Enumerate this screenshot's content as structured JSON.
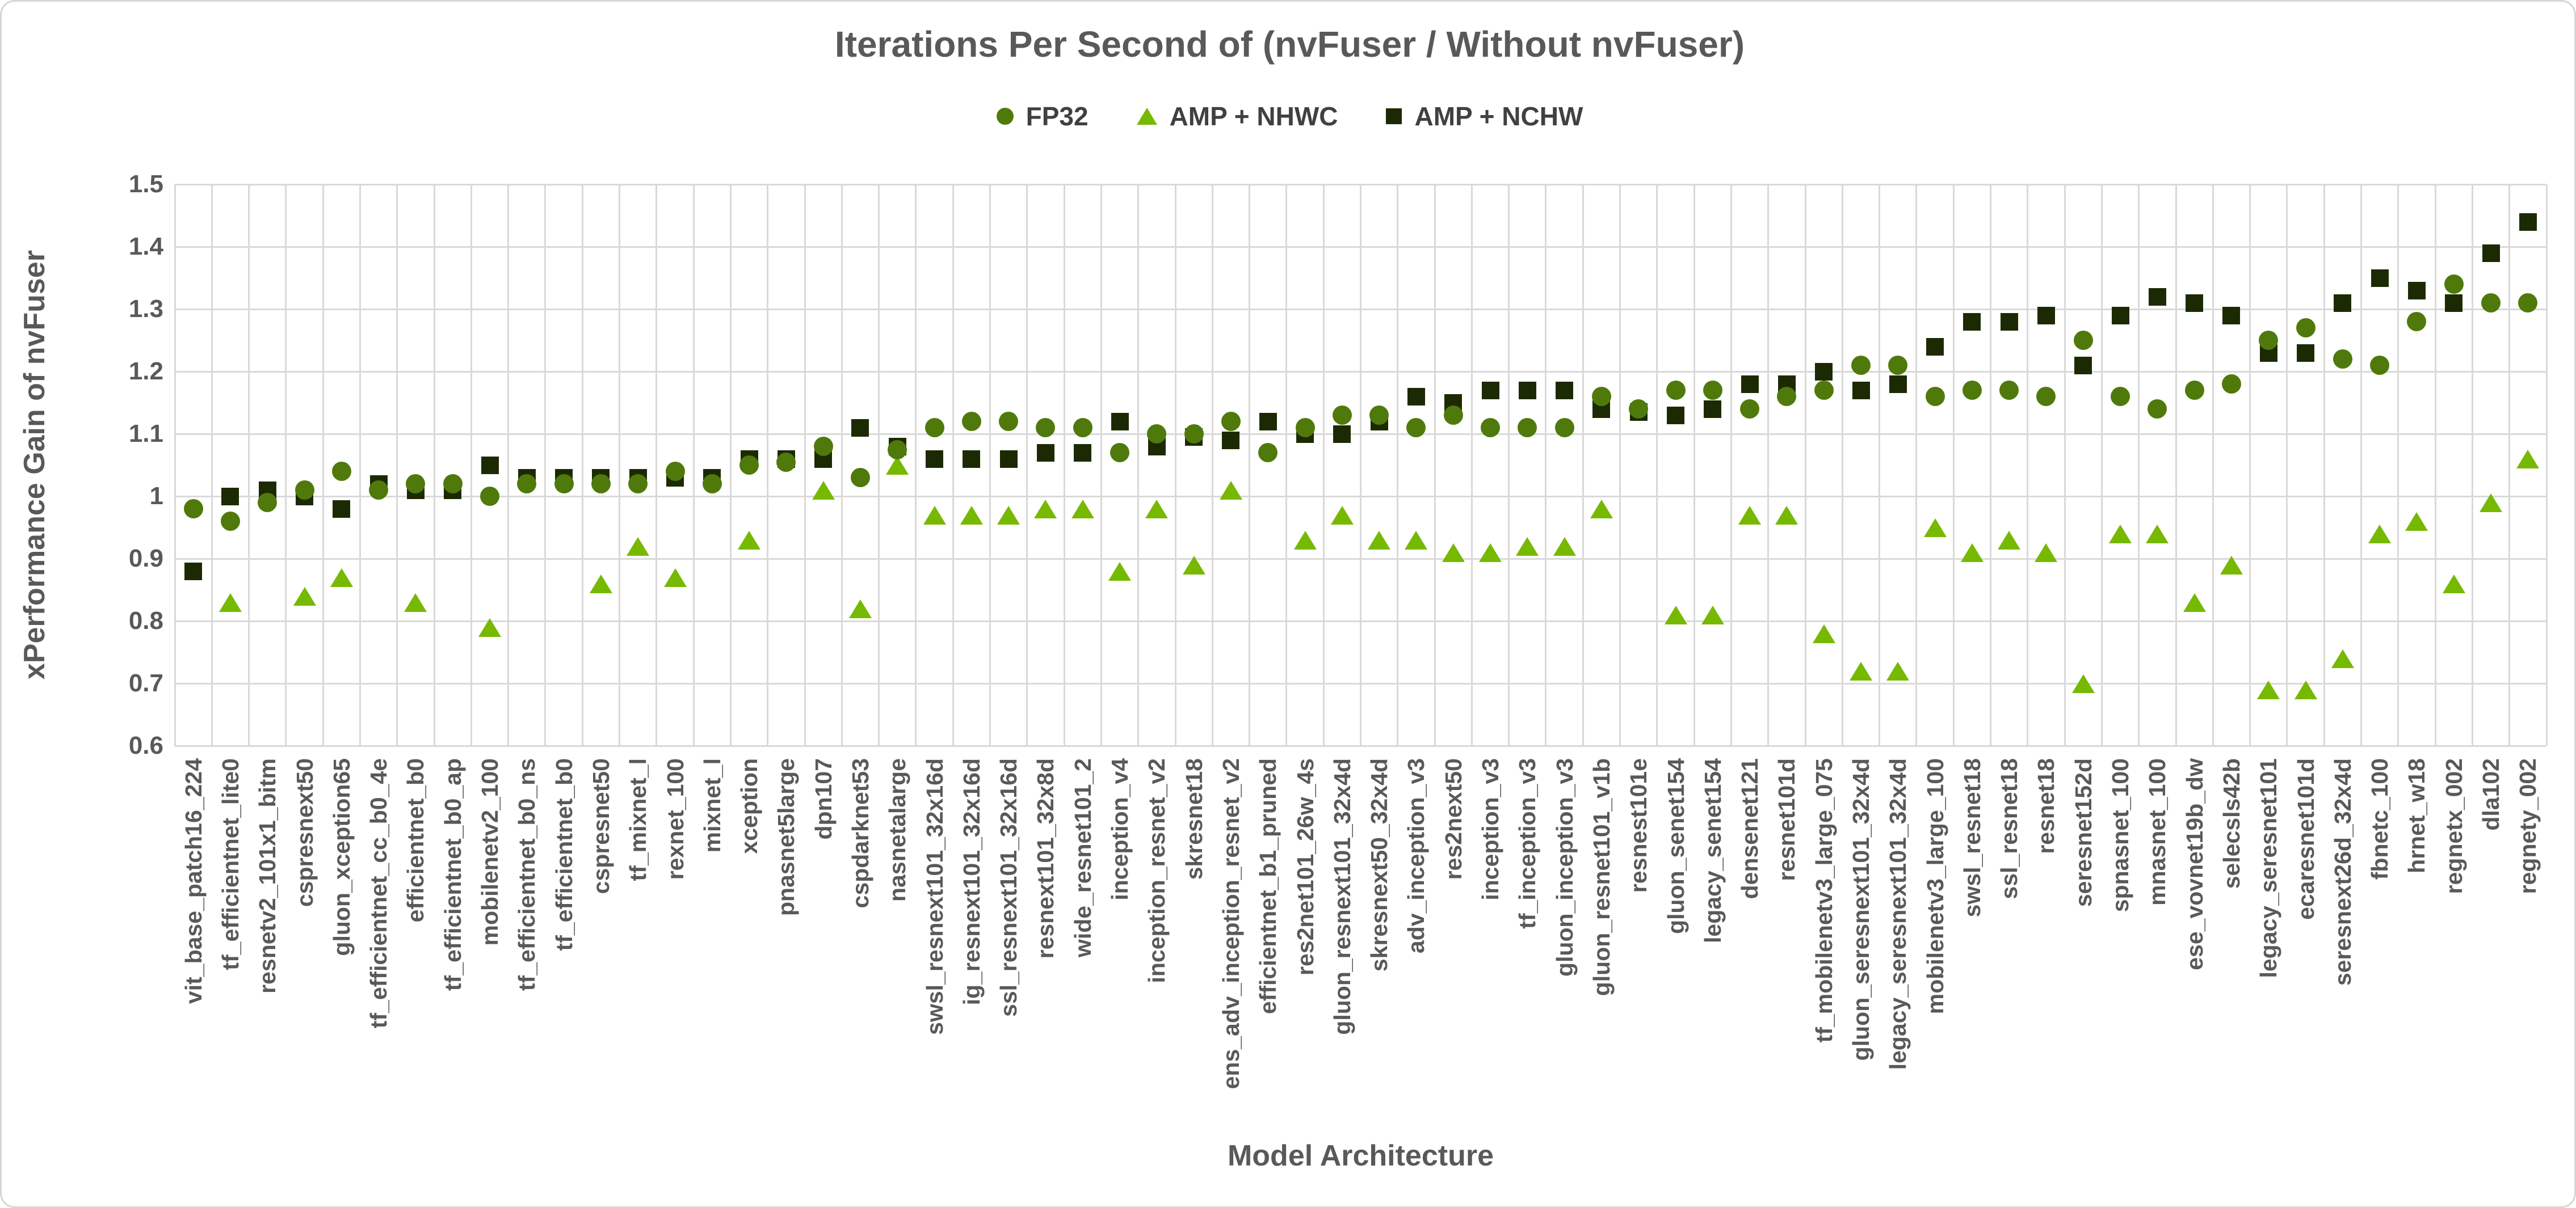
{
  "title": "Iterations Per Second of (nvFuser / Without nvFuser)",
  "colors": {
    "fp32": "#4f7a0b",
    "amp_nhwc": "#76b900",
    "amp_nchw": "#1b2a02",
    "text": "#595959",
    "grid": "#d9d9d9"
  },
  "legend": [
    {
      "label": "FP32",
      "shape": "circle"
    },
    {
      "label": "AMP + NHWC",
      "shape": "triangle"
    },
    {
      "label": "AMP + NCHW",
      "shape": "square"
    }
  ],
  "y_axis": {
    "title": "xPerformance Gain of nvFuser",
    "tick_labels": [
      "1.5",
      "1.4",
      "1.3",
      "1.2",
      "1.1",
      "1",
      "0.9",
      "0.8",
      "0.7",
      "0.6"
    ],
    "tick_values": [
      1.5,
      1.4,
      1.3,
      1.2,
      1.1,
      1.0,
      0.9,
      0.8,
      0.7,
      0.6
    ]
  },
  "x_axis": {
    "title": "Model Architecture"
  },
  "chart_data": {
    "type": "scatter",
    "title": "Iterations Per Second of (nvFuser / Without nvFuser)",
    "xlabel": "Model Architecture",
    "ylabel": "xPerformance Gain of nvFuser",
    "ylim": [
      0.6,
      1.5
    ],
    "grid": true,
    "legend_position": "top",
    "categories": [
      "vit_base_patch16_224",
      "tf_efficientnet_lite0",
      "resnetv2_101x1_bitm",
      "cspresnext50",
      "gluon_xception65",
      "tf_efficientnet_cc_b0_4e",
      "efficientnet_b0",
      "tf_efficientnet_b0_ap",
      "mobilenetv2_100",
      "tf_efficientnet_b0_ns",
      "tf_efficientnet_b0",
      "cspresnet50",
      "tf_mixnet_l",
      "rexnet_100",
      "mixnet_l",
      "xception",
      "pnasnet5large",
      "dpn107",
      "cspdarknet53",
      "nasnetalarge",
      "swsl_resnext101_32x16d",
      "ig_resnext101_32x16d",
      "ssl_resnext101_32x16d",
      "resnext101_32x8d",
      "wide_resnet101_2",
      "inception_v4",
      "inception_resnet_v2",
      "skresnet18",
      "ens_adv_inception_resnet_v2",
      "efficientnet_b1_pruned",
      "res2net101_26w_4s",
      "gluon_resnext101_32x4d",
      "skresnext50_32x4d",
      "adv_inception_v3",
      "res2next50",
      "inception_v3",
      "tf_inception_v3",
      "gluon_inception_v3",
      "gluon_resnet101_v1b",
      "resnest101e",
      "gluon_senet154",
      "legacy_senet154",
      "densenet121",
      "resnet101d",
      "tf_mobilenetv3_large_075",
      "gluon_seresnext101_32x4d",
      "legacy_seresnext101_32x4d",
      "mobilenetv3_large_100",
      "swsl_resnet18",
      "ssl_resnet18",
      "resnet18",
      "seresnet152d",
      "spnasnet_100",
      "mnasnet_100",
      "ese_vovnet19b_dw",
      "selecsls42b",
      "legacy_seresnet101",
      "ecaresnet101d",
      "seresnext26d_32x4d",
      "fbnetc_100",
      "hrnet_w18",
      "regnetx_002",
      "dla102",
      "regnety_002"
    ],
    "series": [
      {
        "name": "FP32",
        "marker": "circle",
        "values": [
          0.98,
          0.96,
          0.99,
          1.01,
          1.04,
          1.01,
          1.02,
          1.02,
          1.0,
          1.02,
          1.02,
          1.02,
          1.02,
          1.04,
          1.02,
          1.05,
          1.055,
          1.08,
          1.03,
          1.075,
          1.11,
          1.12,
          1.12,
          1.11,
          1.11,
          1.07,
          1.1,
          1.1,
          1.12,
          1.07,
          1.11,
          1.13,
          1.13,
          1.11,
          1.13,
          1.11,
          1.11,
          1.11,
          1.16,
          1.14,
          1.17,
          1.17,
          1.14,
          1.16,
          1.17,
          1.21,
          1.21,
          1.16,
          1.17,
          1.17,
          1.16,
          1.25,
          1.16,
          1.14,
          1.17,
          1.18,
          1.25,
          1.27,
          1.22,
          1.21,
          1.28,
          1.34,
          1.31,
          1.31
        ]
      },
      {
        "name": "AMP + NHWC",
        "marker": "triangle",
        "values": [
          null,
          0.83,
          null,
          0.84,
          0.87,
          null,
          0.83,
          null,
          0.79,
          null,
          null,
          0.86,
          0.92,
          0.87,
          null,
          0.93,
          null,
          1.01,
          0.82,
          1.05,
          0.97,
          0.97,
          0.97,
          0.98,
          0.98,
          0.88,
          0.98,
          0.89,
          1.01,
          null,
          0.93,
          0.97,
          0.93,
          0.93,
          0.91,
          0.91,
          0.92,
          0.92,
          0.98,
          null,
          0.81,
          0.81,
          0.97,
          0.97,
          0.78,
          0.72,
          0.72,
          0.95,
          0.91,
          0.93,
          0.91,
          0.7,
          0.94,
          0.94,
          0.83,
          0.89,
          0.69,
          0.69,
          0.74,
          0.94,
          0.96,
          0.86,
          0.99,
          1.06
        ]
      },
      {
        "name": "AMP + NCHW",
        "marker": "square",
        "values": [
          0.88,
          1.0,
          1.01,
          1.0,
          0.98,
          1.02,
          1.01,
          1.01,
          1.05,
          1.03,
          1.03,
          1.03,
          1.03,
          1.03,
          1.03,
          1.06,
          1.06,
          1.06,
          1.11,
          1.08,
          1.06,
          1.06,
          1.06,
          1.07,
          1.07,
          1.12,
          1.08,
          1.095,
          1.09,
          1.12,
          1.1,
          1.1,
          1.12,
          1.16,
          1.15,
          1.17,
          1.17,
          1.17,
          1.14,
          1.135,
          1.13,
          1.14,
          1.18,
          1.18,
          1.2,
          1.17,
          1.18,
          1.24,
          1.28,
          1.28,
          1.29,
          1.21,
          1.29,
          1.32,
          1.31,
          1.29,
          1.23,
          1.23,
          1.31,
          1.35,
          1.33,
          1.31,
          1.39,
          1.44
        ]
      }
    ]
  }
}
